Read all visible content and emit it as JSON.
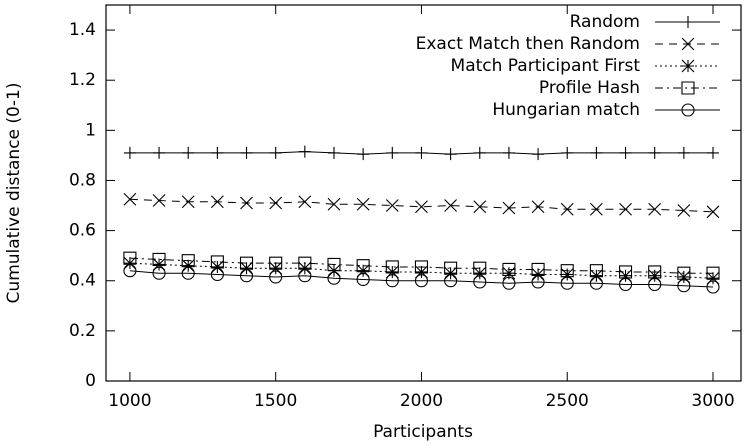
{
  "chart_data": {
    "type": "line",
    "xlabel": "Participants",
    "ylabel": "Cumulative distance (0-1)",
    "x": [
      1000,
      1100,
      1200,
      1300,
      1400,
      1500,
      1600,
      1700,
      1800,
      1900,
      2000,
      2100,
      2200,
      2300,
      2400,
      2500,
      2600,
      2700,
      2800,
      2900,
      3000
    ],
    "series": [
      {
        "name": "Random",
        "color": "#000000",
        "marker": "plus",
        "line_style": "solid",
        "values": [
          0.91,
          0.91,
          0.91,
          0.91,
          0.91,
          0.91,
          0.915,
          0.91,
          0.905,
          0.91,
          0.91,
          0.905,
          0.91,
          0.91,
          0.905,
          0.91,
          0.91,
          0.91,
          0.91,
          0.91,
          0.91
        ]
      },
      {
        "name": "Exact Match then Random",
        "color": "#000000",
        "marker": "x",
        "line_style": "dashed",
        "values": [
          0.725,
          0.72,
          0.715,
          0.715,
          0.71,
          0.71,
          0.715,
          0.705,
          0.705,
          0.7,
          0.695,
          0.7,
          0.695,
          0.69,
          0.695,
          0.685,
          0.685,
          0.685,
          0.685,
          0.68,
          0.675
        ]
      },
      {
        "name": "Match Participant First",
        "color": "#000000",
        "marker": "asterisk",
        "line_style": "dotted",
        "values": [
          0.47,
          0.465,
          0.46,
          0.455,
          0.45,
          0.45,
          0.45,
          0.44,
          0.44,
          0.435,
          0.435,
          0.43,
          0.43,
          0.43,
          0.425,
          0.425,
          0.42,
          0.42,
          0.42,
          0.415,
          0.41
        ]
      },
      {
        "name": "Profile Hash",
        "color": "#000000",
        "marker": "square",
        "line_style": "dashdot",
        "values": [
          0.49,
          0.485,
          0.48,
          0.475,
          0.47,
          0.47,
          0.47,
          0.465,
          0.46,
          0.455,
          0.455,
          0.45,
          0.45,
          0.445,
          0.445,
          0.44,
          0.44,
          0.435,
          0.435,
          0.43,
          0.43
        ]
      },
      {
        "name": "Hungarian match",
        "color": "#000000",
        "marker": "circle",
        "line_style": "solid",
        "values": [
          0.44,
          0.43,
          0.43,
          0.425,
          0.42,
          0.415,
          0.42,
          0.41,
          0.405,
          0.4,
          0.4,
          0.4,
          0.395,
          0.39,
          0.395,
          0.39,
          0.39,
          0.385,
          0.385,
          0.38,
          0.375
        ]
      }
    ],
    "xlim": [
      918,
      3096
    ],
    "xticks": [
      1000,
      1500,
      2000,
      2500,
      3000
    ],
    "ylim": [
      0,
      1.5
    ],
    "yticks": [
      0,
      0.2,
      0.4,
      0.6,
      0.8,
      1,
      1.2,
      1.4
    ],
    "legend": "top-right"
  }
}
